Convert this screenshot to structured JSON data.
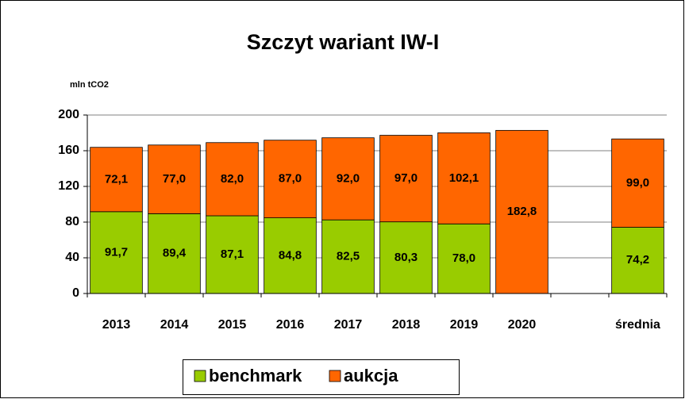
{
  "chart_data": {
    "type": "stacked_bar",
    "title": "Szczyt wariant  IW-I",
    "y_label": "mln tCO2",
    "categories": [
      "2013",
      "2014",
      "2015",
      "2016",
      "2017",
      "2018",
      "2019",
      "2020",
      null,
      "średnia"
    ],
    "series": [
      {
        "name": "benchmark",
        "color": "#99cc00",
        "values": [
          91.7,
          89.4,
          87.1,
          84.8,
          82.5,
          80.3,
          78.0,
          null,
          null,
          74.2
        ],
        "value_labels": [
          "91,7",
          "89,4",
          "87,1",
          "84,8",
          "82,5",
          "80,3",
          "78,0",
          null,
          null,
          "74,2"
        ]
      },
      {
        "name": "aukcja",
        "color": "#ff6600",
        "values": [
          72.1,
          77.0,
          82.0,
          87.0,
          92.0,
          97.0,
          102.1,
          182.8,
          null,
          99.0
        ],
        "value_labels": [
          "72,1",
          "77,0",
          "82,0",
          "87,0",
          "92,0",
          "97,0",
          "102,1",
          "182,8",
          null,
          "99,0"
        ]
      }
    ],
    "ylim": [
      0,
      200
    ],
    "yticks": [
      0,
      40,
      80,
      120,
      160,
      200
    ],
    "grid": true,
    "legend": "bottom"
  }
}
